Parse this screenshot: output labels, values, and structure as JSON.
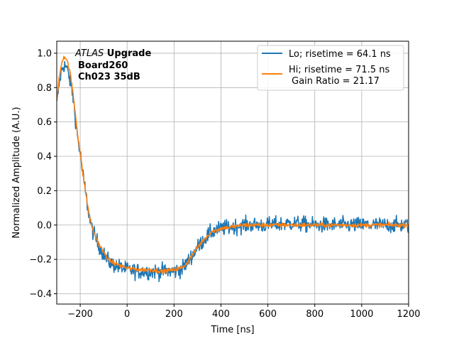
{
  "chart_data": {
    "type": "line",
    "xlabel": "Time [ns]",
    "ylabel": "Normalized Amplitude (A.U.)",
    "xlim": [
      -300,
      1200
    ],
    "ylim": [
      -0.46,
      1.07
    ],
    "xticks": [
      -200,
      0,
      200,
      400,
      600,
      800,
      1000,
      1200
    ],
    "xtick_labels": [
      "−200",
      "0",
      "200",
      "400",
      "600",
      "800",
      "1000",
      "1200"
    ],
    "yticks": [
      -0.4,
      -0.2,
      0.0,
      0.2,
      0.4,
      0.6,
      0.8,
      1.0
    ],
    "ytick_labels": [
      "−0.4",
      "−0.2",
      "0.0",
      "0.2",
      "0.4",
      "0.6",
      "0.8",
      "1.0"
    ],
    "grid": true,
    "legend_position": "top-right",
    "annotation": {
      "line1_italic": "ATLAS",
      "line1_bold": " Upgrade",
      "line2": "Board260",
      "line3": "Ch023 35dB"
    },
    "series": [
      {
        "name": "Lo; risetime = 64.1 ns",
        "color": "#1f77b4",
        "noise": 0.045,
        "x": [
          -300,
          -290,
          -280,
          -270,
          -260,
          -250,
          -240,
          -230,
          -220,
          -210,
          -200,
          -190,
          -180,
          -170,
          -160,
          -150,
          -140,
          -120,
          -100,
          -80,
          -60,
          -40,
          -20,
          0,
          50,
          100,
          150,
          200,
          230,
          250,
          270,
          300,
          330,
          360,
          400,
          450,
          500,
          600,
          700,
          800,
          900,
          1000,
          1100,
          1200
        ],
        "y": [
          0.7,
          0.82,
          0.9,
          0.93,
          0.92,
          0.88,
          0.82,
          0.74,
          0.62,
          0.5,
          0.42,
          0.3,
          0.22,
          0.12,
          0.04,
          -0.02,
          -0.06,
          -0.12,
          -0.17,
          -0.21,
          -0.23,
          -0.24,
          -0.25,
          -0.26,
          -0.27,
          -0.27,
          -0.27,
          -0.27,
          -0.26,
          -0.23,
          -0.19,
          -0.13,
          -0.08,
          -0.04,
          -0.02,
          -0.01,
          0.0,
          0.0,
          0.01,
          0.0,
          0.0,
          0.0,
          0.0,
          0.0
        ]
      },
      {
        "name": "Hi; risetime = 71.5 ns\n Gain Ratio = 21.17",
        "color": "#ff7f0e",
        "noise": 0.012,
        "x": [
          -300,
          -290,
          -280,
          -270,
          -260,
          -250,
          -240,
          -230,
          -220,
          -210,
          -200,
          -190,
          -180,
          -170,
          -160,
          -150,
          -140,
          -120,
          -100,
          -80,
          -60,
          -40,
          -20,
          0,
          50,
          100,
          150,
          200,
          230,
          250,
          270,
          300,
          330,
          360,
          400,
          450,
          500,
          600,
          700,
          800,
          900,
          1000,
          1100,
          1200
        ],
        "y": [
          0.72,
          0.85,
          0.94,
          0.98,
          0.97,
          0.93,
          0.86,
          0.76,
          0.64,
          0.52,
          0.42,
          0.31,
          0.22,
          0.13,
          0.05,
          -0.01,
          -0.05,
          -0.11,
          -0.16,
          -0.2,
          -0.22,
          -0.23,
          -0.24,
          -0.25,
          -0.26,
          -0.26,
          -0.27,
          -0.26,
          -0.25,
          -0.23,
          -0.19,
          -0.13,
          -0.08,
          -0.04,
          -0.02,
          -0.01,
          0.0,
          0.0,
          0.0,
          0.0,
          0.0,
          0.0,
          0.0,
          0.0
        ]
      }
    ]
  }
}
